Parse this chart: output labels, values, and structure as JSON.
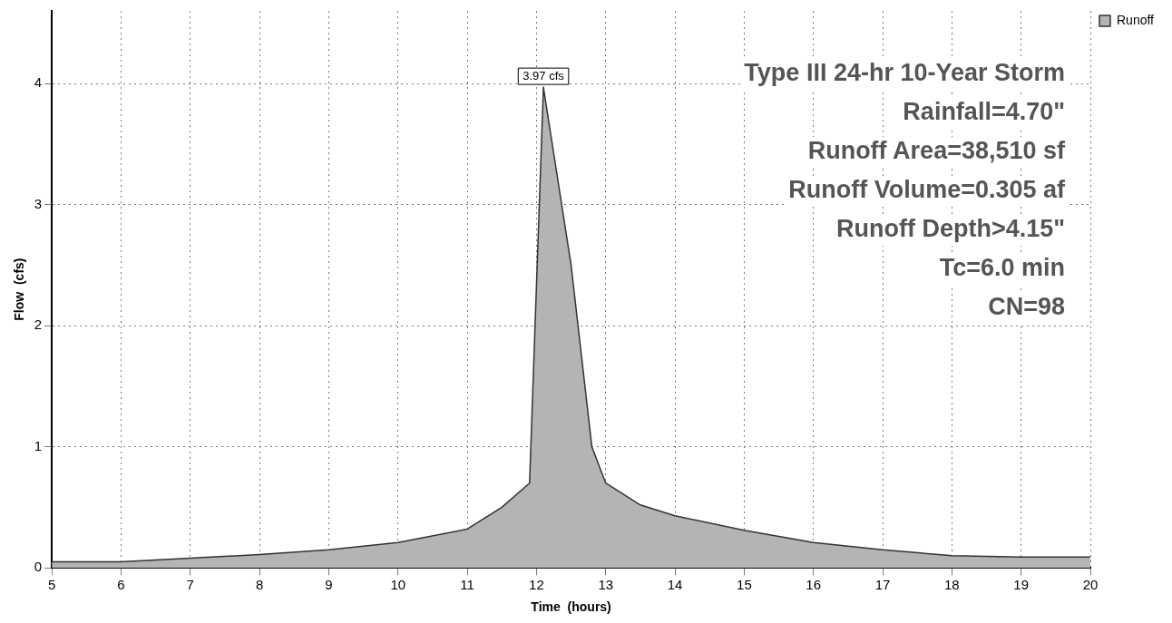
{
  "chart_data": {
    "type": "area",
    "xlabel": "Time  (hours)",
    "ylabel": "Flow  (cfs)",
    "x": [
      5,
      6,
      7,
      8,
      9,
      10,
      11,
      11.5,
      11.9,
      12.1,
      12.5,
      12.8,
      13,
      13.5,
      14,
      15,
      16,
      17,
      18,
      19,
      20
    ],
    "series": [
      {
        "name": "Runoff",
        "color": "#b4b4b4",
        "values": [
          0.05,
          0.05,
          0.08,
          0.11,
          0.15,
          0.21,
          0.32,
          0.5,
          0.7,
          3.97,
          2.5,
          1.0,
          0.7,
          0.52,
          0.43,
          0.31,
          0.21,
          0.15,
          0.1,
          0.09,
          0.09
        ]
      }
    ],
    "xlim": [
      5,
      20
    ],
    "xticks": [
      5,
      6,
      7,
      8,
      9,
      10,
      11,
      12,
      13,
      14,
      15,
      16,
      17,
      18,
      19,
      20
    ],
    "ylim": [
      0,
      4.6
    ],
    "yticks": [
      0,
      1,
      2,
      3,
      4
    ],
    "grid": true,
    "legend": "top right",
    "marker": "none",
    "annotations": [
      {
        "text": "3.97 cfs",
        "x": 12.1,
        "y": 3.97
      },
      "Type III 24-hr 10-Year Storm",
      "Rainfall=4.70\"",
      "Runoff Area=38,510 sf",
      "Runoff Volume=0.305 af",
      "Runoff Depth>4.15\"",
      "Tc=6.0 min",
      "CN=98"
    ]
  }
}
